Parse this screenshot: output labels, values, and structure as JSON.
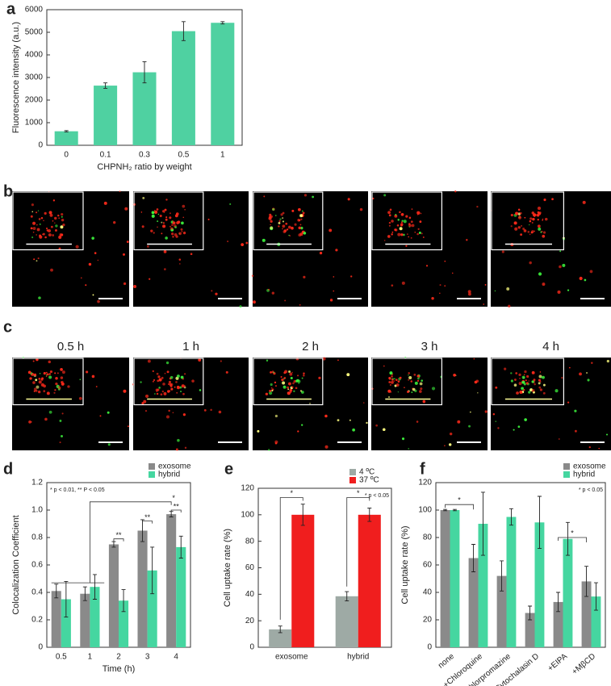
{
  "panel_labels": [
    "a",
    "b",
    "c",
    "d",
    "e",
    "f"
  ],
  "time_labels": [
    "0.5 h",
    "1 h",
    "2 h",
    "3 h",
    "4 h"
  ],
  "chart_data": [
    {
      "type": "bar",
      "xlabel": "CHPNH₂ ratio by weight",
      "ylabel": "Fluorescence intensity (a.u.)",
      "categories": [
        "0",
        "0.1",
        "0.3",
        "0.5",
        "1"
      ],
      "values": [
        620,
        2640,
        3230,
        5050,
        5420
      ],
      "errors": [
        30,
        120,
        470,
        420,
        50
      ],
      "color": "#4fd1a1",
      "ylim": [
        0,
        6000
      ],
      "yticks": [
        0,
        1000,
        2000,
        3000,
        4000,
        5000,
        6000
      ]
    },
    {
      "type": "bar",
      "xlabel": "Time (h)",
      "ylabel": "Colocalization Coefficient",
      "annotation": "* p < 0.01, ** P < 0.05",
      "categories": [
        "0.5",
        "1",
        "2",
        "3",
        "4"
      ],
      "series": [
        {
          "name": "exosome",
          "color": "#8a8a8a",
          "values": [
            0.41,
            0.39,
            0.75,
            0.85,
            0.97
          ],
          "errors": [
            0.05,
            0.05,
            0.02,
            0.08,
            0.02
          ]
        },
        {
          "name": "hybrid",
          "color": "#45d6a0",
          "values": [
            0.35,
            0.44,
            0.34,
            0.56,
            0.73
          ],
          "errors": [
            0.13,
            0.09,
            0.08,
            0.17,
            0.08
          ]
        }
      ],
      "significance": [
        "**",
        "**",
        "**",
        "*"
      ],
      "ylim": [
        0,
        1.2
      ],
      "yticks": [
        0,
        0.2,
        0.4,
        0.6,
        0.8,
        {
          "value": 1,
          "label": "1.0"
        },
        1.2
      ]
    },
    {
      "type": "bar",
      "ylabel": "Cell uptake rate (%)",
      "annotation": "* p < 0.05",
      "categories": [
        "exosome",
        "hybrid"
      ],
      "series": [
        {
          "name": "4 ºC",
          "color": "#9eaaa5",
          "values": [
            13.5,
            38.5
          ],
          "errors": [
            2.5,
            3.5
          ]
        },
        {
          "name": "37 ºC",
          "color": "#f01e1e",
          "values": [
            100,
            100
          ],
          "errors": [
            8,
            5
          ]
        }
      ],
      "significance": [
        "*",
        "*"
      ],
      "ylim": [
        0,
        120
      ],
      "yticks": [
        0,
        20,
        40,
        60,
        80,
        100,
        120
      ]
    },
    {
      "type": "bar",
      "ylabel": "Cell uptake rate (%)",
      "annotation": "* p < 0.05",
      "categories": [
        "none",
        "+Chloroquine",
        "+Chlorpromazine",
        "+Cytochalasin D",
        "+EIPA",
        "+MβCD"
      ],
      "series": [
        {
          "name": "exosome",
          "color": "#8a8a8a",
          "values": [
            100,
            65,
            52,
            25,
            33,
            48
          ],
          "errors": [
            0.5,
            10,
            11,
            5,
            7,
            11
          ]
        },
        {
          "name": "hybrid",
          "color": "#45d6a0",
          "values": [
            100,
            90,
            95,
            91,
            79,
            37
          ],
          "errors": [
            0.5,
            23,
            6,
            19,
            12,
            10
          ]
        }
      ],
      "significance": [
        "*",
        "*"
      ],
      "ylim": [
        0,
        120
      ],
      "yticks": [
        0,
        20,
        40,
        60,
        80,
        100,
        120
      ]
    }
  ]
}
